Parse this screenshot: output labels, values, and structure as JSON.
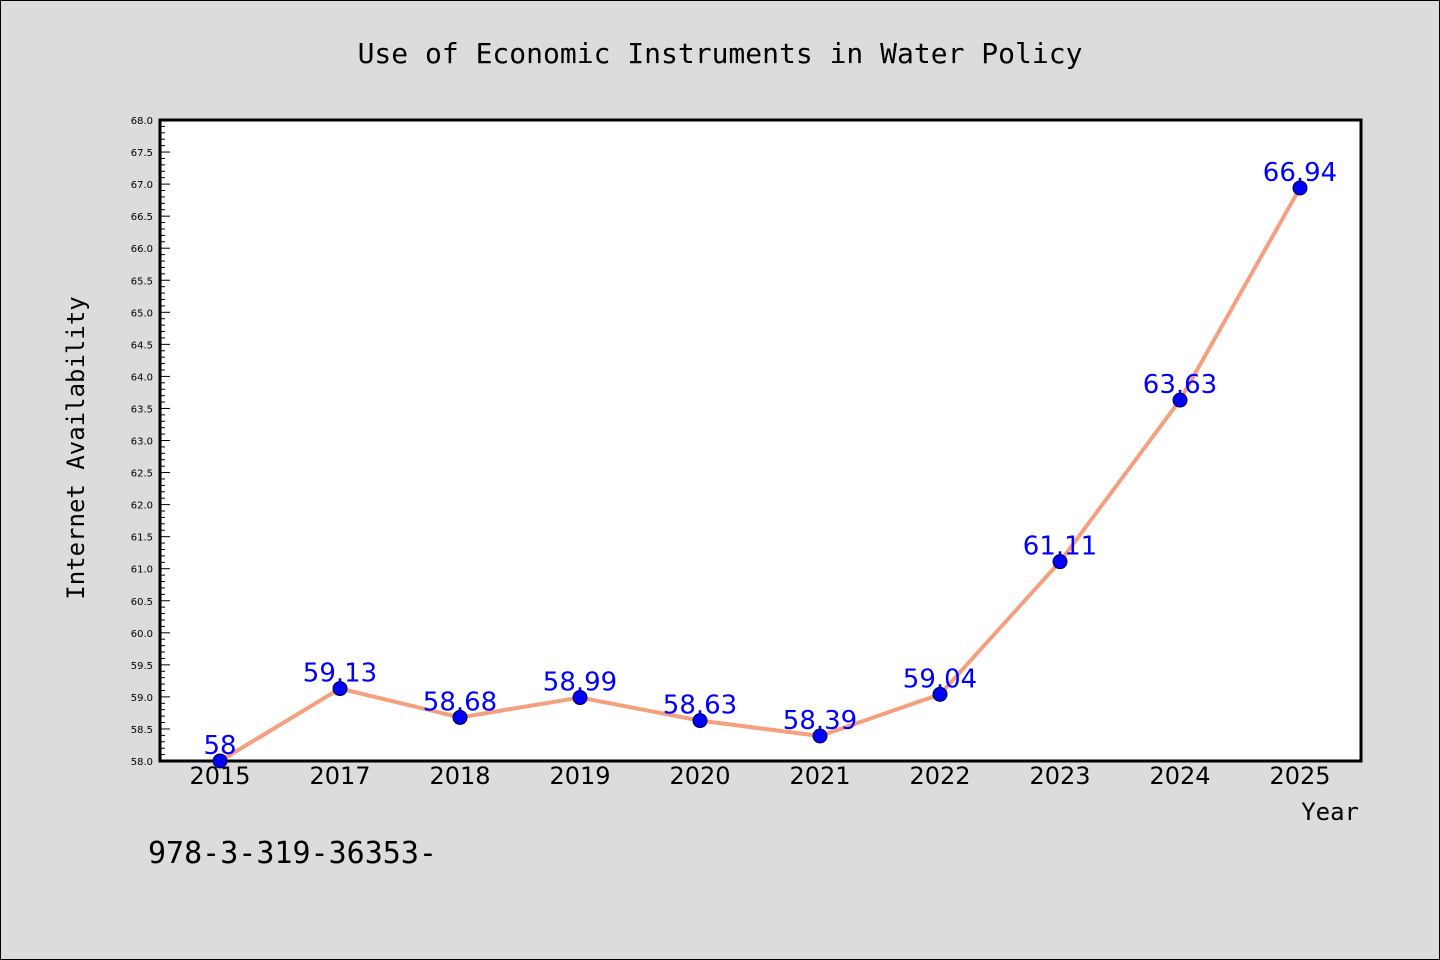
{
  "chart_data": {
    "type": "line",
    "title": "Use of Economic Instruments in Water Policy",
    "xlabel": "Year",
    "ylabel": "Internet Availability",
    "categories": [
      "2015",
      "2017",
      "2018",
      "2019",
      "2020",
      "2021",
      "2022",
      "2023",
      "2024",
      "2025"
    ],
    "series": [
      {
        "values": [
          58,
          59.13,
          58.68,
          58.99,
          58.63,
          58.39,
          59.04,
          61.11,
          63.63,
          66.94
        ],
        "data_labels": [
          "58",
          "59.13",
          "58.68",
          "58.99",
          "58.63",
          "58.39",
          "59.04",
          "61.11",
          "63.63",
          "66.94"
        ],
        "line_color": "#f4a07f",
        "marker_color": "#0000ff"
      }
    ],
    "ylim": [
      58.0,
      68.0
    ],
    "ytick_step": 0.5,
    "grid": false,
    "legend": "none"
  },
  "footer_note": "978-3-319-36353-",
  "colors": {
    "background": "#dcdcdc",
    "plot_background": "#ffffff",
    "line": "#f4a07f",
    "marker": "#0000ff",
    "data_label": "#0000ff"
  }
}
